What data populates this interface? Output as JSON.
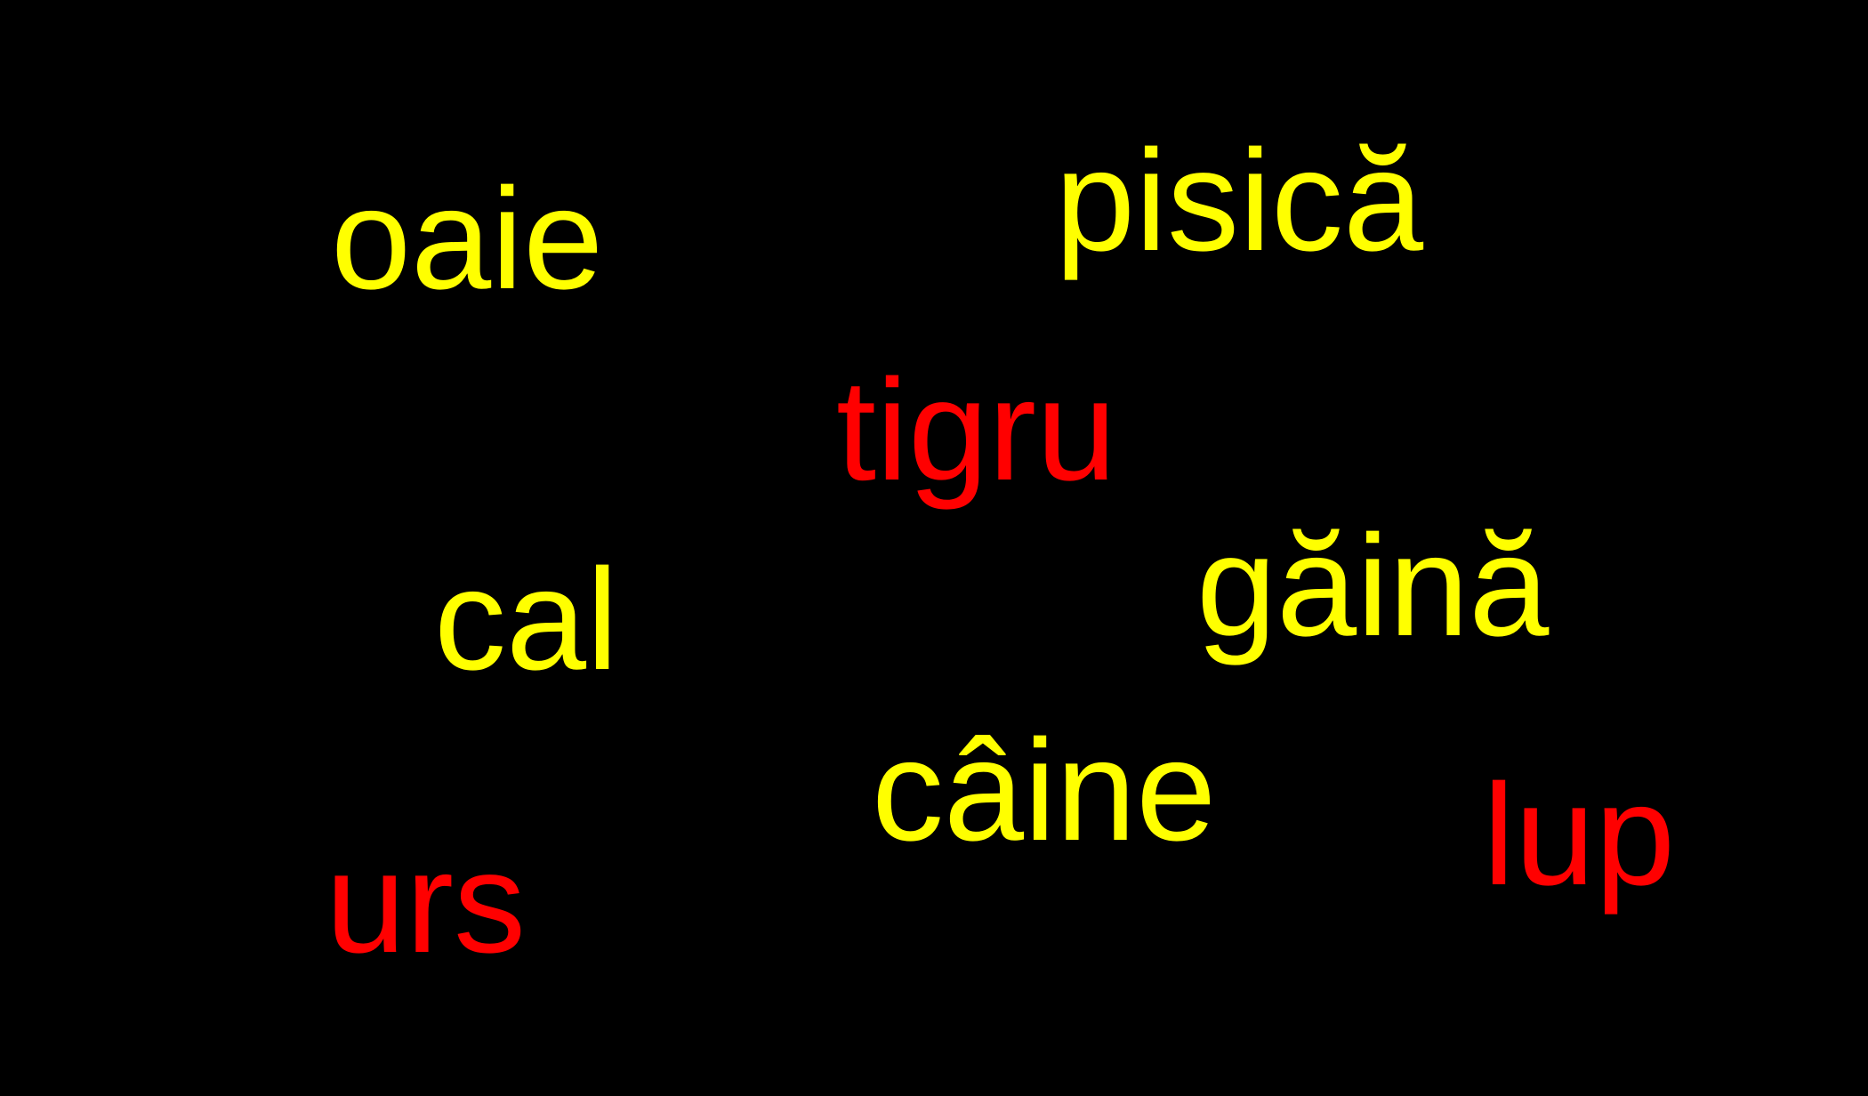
{
  "background_color": "#000000",
  "colors": {
    "yellow": "#ffff00",
    "red": "#ff0000"
  },
  "words": [
    {
      "text": "oaie",
      "color": "yellow"
    },
    {
      "text": "pisică",
      "color": "yellow"
    },
    {
      "text": "tigru",
      "color": "red"
    },
    {
      "text": "cal",
      "color": "yellow"
    },
    {
      "text": "găină",
      "color": "yellow"
    },
    {
      "text": "câine",
      "color": "yellow"
    },
    {
      "text": "lup",
      "color": "red"
    },
    {
      "text": "urs",
      "color": "red"
    }
  ]
}
